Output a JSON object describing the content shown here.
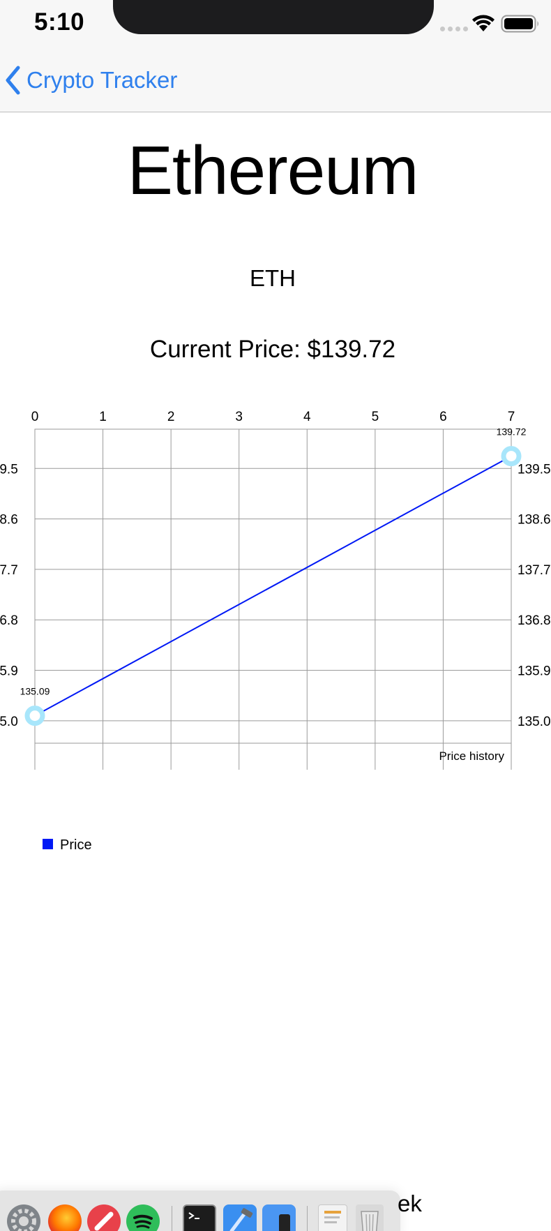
{
  "status_bar": {
    "time": "5:10"
  },
  "nav": {
    "back_label": "Crypto Tracker"
  },
  "coin": {
    "name": "Ethereum",
    "symbol": "ETH",
    "current_price": "Current Price: $139.72"
  },
  "chart_data": {
    "type": "line",
    "x": [
      0,
      7
    ],
    "series": [
      {
        "name": "Price",
        "values": [
          135.09,
          139.72
        ],
        "color": "#0018f5"
      }
    ],
    "data_labels": [
      "135.09",
      "139.72"
    ],
    "x_ticks": [
      "0",
      "1",
      "2",
      "3",
      "4",
      "5",
      "6",
      "7"
    ],
    "y_ticks": [
      "135.0",
      "135.9",
      "136.8",
      "137.7",
      "138.6",
      "139.5"
    ],
    "y_tick_values": [
      135.0,
      135.9,
      136.8,
      137.7,
      138.6,
      139.5
    ],
    "xlim": [
      0,
      7
    ],
    "ylim": [
      134.6,
      140.2
    ],
    "x_axis_position": "top",
    "y_axis_position": "both",
    "grid": true,
    "description": "Price history",
    "legend": [
      "Price"
    ],
    "legend_position": "bottom-left",
    "marker_color": "#a8e6fb",
    "grid_color": "#9a9a9a"
  },
  "dock": {
    "overflow_text": "ek"
  }
}
